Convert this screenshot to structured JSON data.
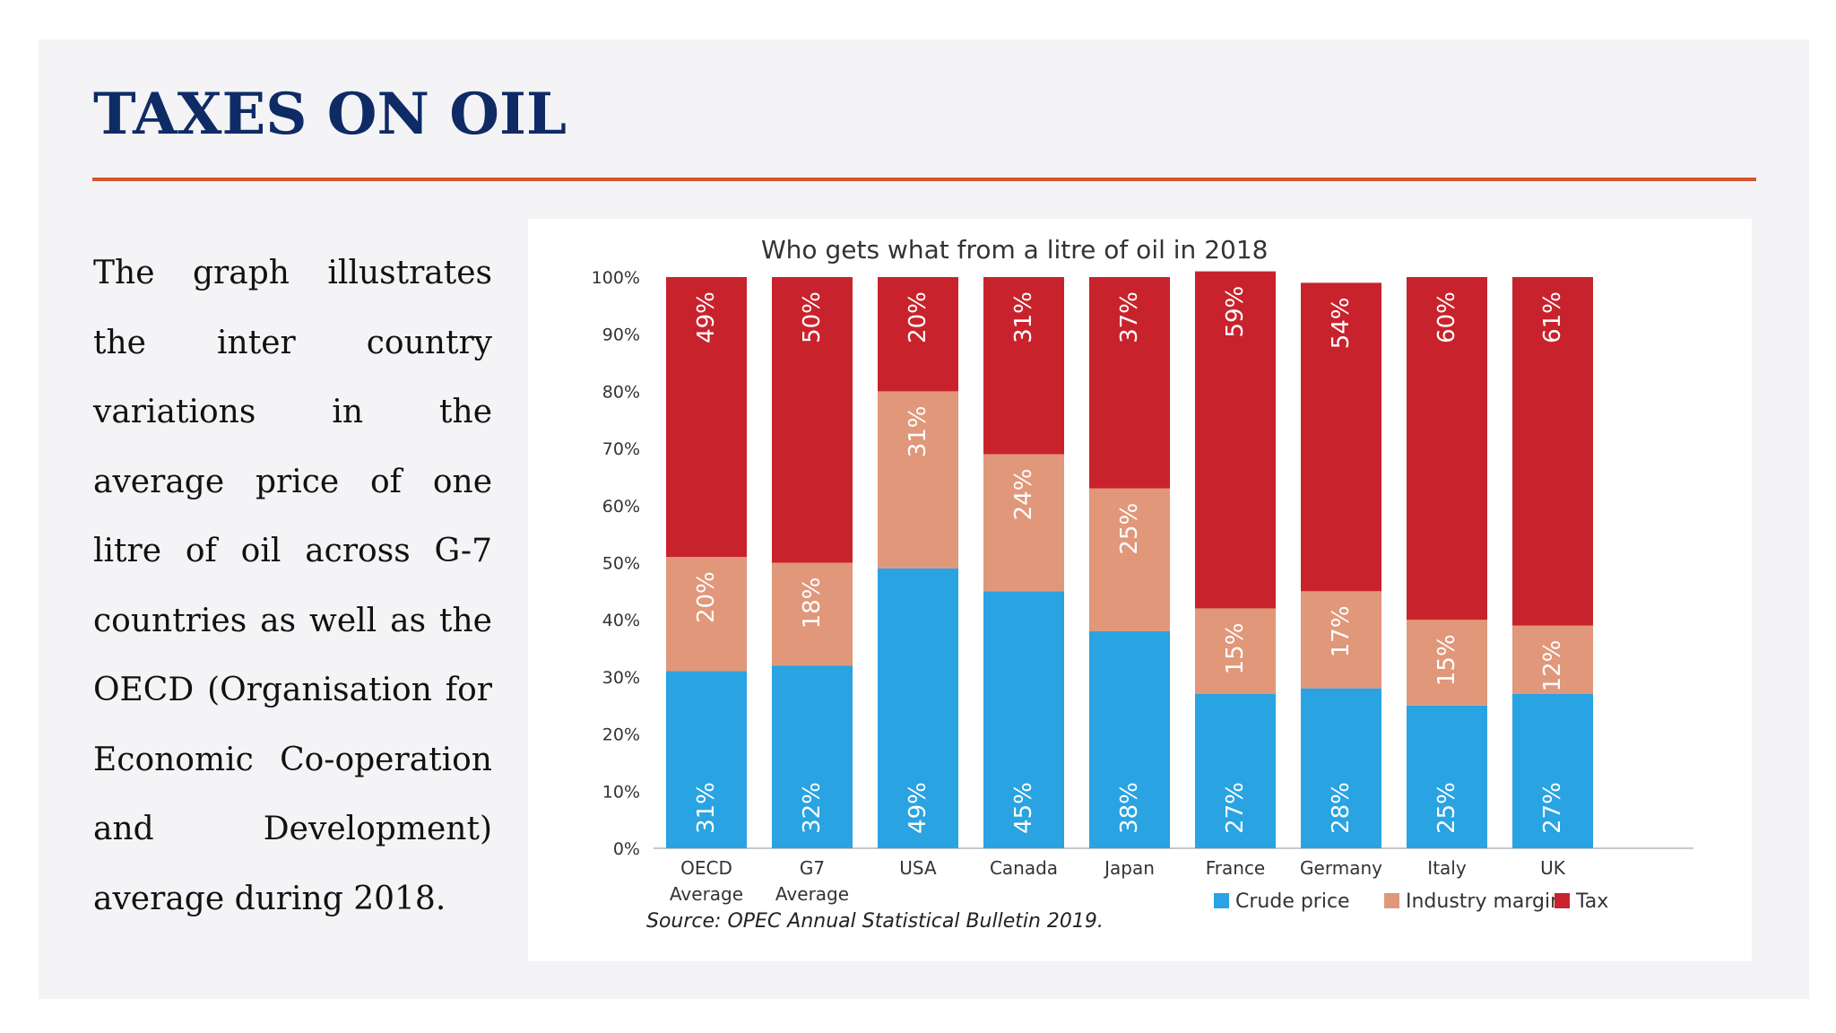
{
  "slide": {
    "title": "TAXES ON OIL",
    "description_lines": [
      "The graph illustrates",
      "the inter country",
      "variations in the",
      "average price of one",
      "litre of oil across G-7",
      "countries as well as the",
      "OECD (Organisation for",
      "Economic Co-operation",
      "and Development)",
      "average during 2018."
    ]
  },
  "chart_data": {
    "type": "bar",
    "stacked": true,
    "title": "Who gets what from a litre of oil in 2018",
    "categories": [
      [
        "OECD",
        "Average"
      ],
      [
        "G7",
        "Average"
      ],
      [
        "USA"
      ],
      [
        "Canada"
      ],
      [
        "Japan"
      ],
      [
        "France"
      ],
      [
        "Germany"
      ],
      [
        "Italy"
      ],
      [
        "UK"
      ]
    ],
    "series": [
      {
        "name": "Crude price",
        "color": "#29a3e1",
        "values": [
          31,
          32,
          49,
          45,
          38,
          27,
          28,
          25,
          27
        ]
      },
      {
        "name": "Industry margin",
        "color": "#e0977a",
        "values": [
          20,
          18,
          31,
          24,
          25,
          15,
          17,
          15,
          12
        ]
      },
      {
        "name": "Tax",
        "color": "#c8232c",
        "values": [
          49,
          50,
          20,
          31,
          37,
          59,
          54,
          60,
          61
        ]
      }
    ],
    "ylim": [
      0,
      100
    ],
    "yticks": [
      "0%",
      "10%",
      "20%",
      "30%",
      "40%",
      "50%",
      "60%",
      "70%",
      "80%",
      "90%",
      "100%"
    ],
    "value_label_suffix": "%",
    "legend_position": "bottom-right",
    "source": "Source: OPEC Annual Statistical Bulletin 2019."
  }
}
